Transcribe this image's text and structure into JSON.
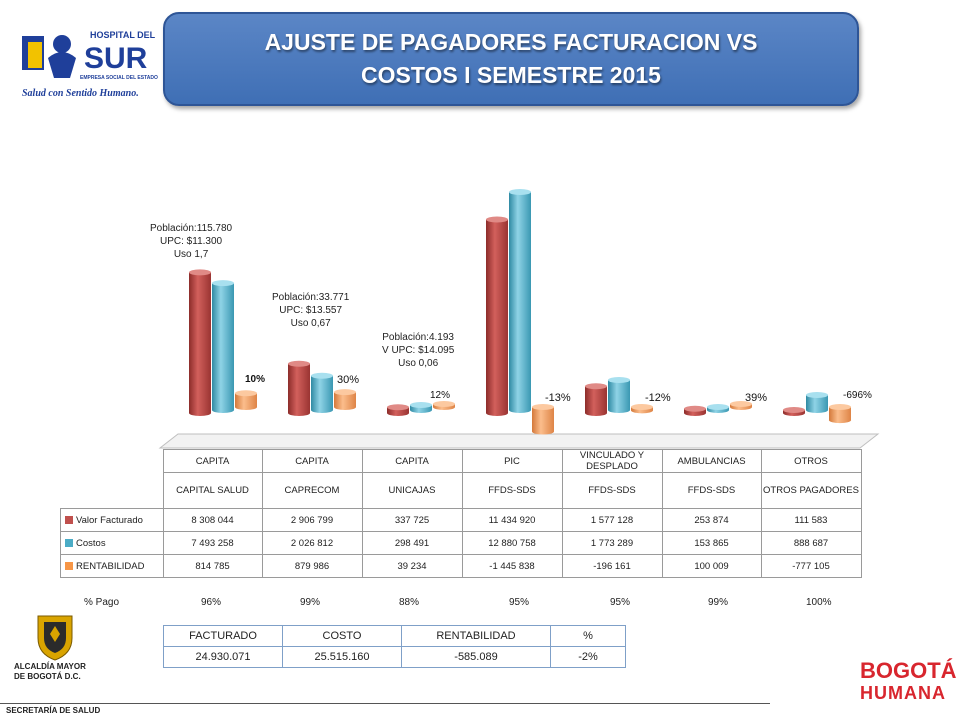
{
  "header": {
    "title_line1": "AJUSTE DE  PAGADORES FACTURACION VS",
    "title_line2": "COSTOS I SEMESTRE 2015"
  },
  "logo": {
    "name": "HOSPITAL DEL",
    "sur": "SUR",
    "sub": "EMPRESA SOCIAL DEL ESTADO",
    "slogan": "Salud con Sentido Humano."
  },
  "annotations": [
    {
      "lines": [
        "Población:115.780",
        "UPC: $11.300",
        "Uso 1,7"
      ]
    },
    {
      "lines": [
        "Población:33.771",
        "UPC: $13.557",
        "Uso 0,67"
      ]
    },
    {
      "lines": [
        "Población:4.193",
        "V UPC: $14.095",
        "Uso 0,06"
      ]
    }
  ],
  "rent_labels": [
    "10%",
    "30%",
    "12%",
    "-13%",
    "-12%",
    "39%",
    "-696%"
  ],
  "chart_data": {
    "type": "bar",
    "categories": [
      [
        "CAPITA",
        "CAPITAL SALUD"
      ],
      [
        "CAPITA",
        "CAPRECOM"
      ],
      [
        "CAPITA",
        "UNICAJAS"
      ],
      [
        "PIC",
        "FFDS-SDS"
      ],
      [
        "VINCULADO Y DESPLADO",
        "FFDS-SDS"
      ],
      [
        "AMBULANCIAS",
        "FFDS-SDS"
      ],
      [
        "OTROS",
        "OTROS PAGADORES"
      ]
    ],
    "series": [
      {
        "name": "Valor Facturado",
        "color": "#c0504d",
        "values": [
          8308044,
          2906799,
          337725,
          11434920,
          1577128,
          253874,
          111583
        ],
        "display": [
          "8 308 044",
          "2 906 799",
          "337 725",
          "11 434 920",
          "1 577 128",
          "253 874",
          "111 583"
        ]
      },
      {
        "name": "Costos",
        "color": "#4bacc6",
        "values": [
          7493258,
          2026812,
          298491,
          12880758,
          1773289,
          153865,
          888687
        ],
        "display": [
          "7 493 258",
          "2 026 812",
          "298 491",
          "12 880 758",
          "1 773 289",
          "153 865",
          "888 687"
        ]
      },
      {
        "name": "RENTABILIDAD",
        "color": "#f79646",
        "values": [
          814785,
          879986,
          39234,
          -1445838,
          -196161,
          100009,
          -777105
        ],
        "display": [
          "814 785",
          "879 986",
          "39 234",
          "-1 445 838",
          "-196 161",
          "100 009",
          "-777 105"
        ]
      }
    ],
    "grid": false
  },
  "pago": {
    "label": "% Pago",
    "values": [
      "96%",
      "99%",
      "88%",
      "95%",
      "95%",
      "99%",
      "100%"
    ]
  },
  "summary": {
    "headers": [
      "FACTURADO",
      "COSTO",
      "RENTABILIDAD",
      "%"
    ],
    "values": [
      "24.930.071",
      "25.515.160",
      "-585.089",
      "-2%"
    ]
  },
  "footer": {
    "alcaldia_1": "ALCALDÍA MAYOR",
    "alcaldia_2": "DE BOGOTÁ D.C.",
    "secretaria": "SECRETARÍA DE SALUD",
    "bogota_1": "BOGOTÁ",
    "bogota_2": "HUMANA"
  }
}
